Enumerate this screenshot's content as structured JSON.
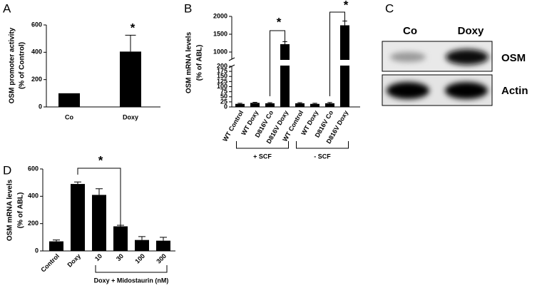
{
  "chart_data": [
    {
      "type": "bar",
      "panel": "A",
      "ylabel": [
        "OSM promoter activity",
        "(% of Control)"
      ],
      "categories": [
        "Co",
        "Doxy"
      ],
      "values": [
        100,
        405
      ],
      "errors": [
        null,
        120
      ],
      "color": "#000000",
      "ylim": [
        0,
        600
      ],
      "yticks": [
        0,
        200,
        400,
        600
      ],
      "annotations": [
        "*"
      ]
    },
    {
      "type": "bar",
      "panel": "B",
      "ylabel": [
        "OSM mRNA levels",
        "(% of ABL)"
      ],
      "categories": [
        "WT Control",
        "WT Doxy",
        "D816V Co",
        "D816V Doxy",
        "WT Control",
        "WT Doxy",
        "D816V Co",
        "D816V Doxy"
      ],
      "values": [
        15,
        20,
        18,
        1220,
        18,
        15,
        18,
        1750
      ],
      "errors": [
        3,
        3,
        3,
        70,
        3,
        3,
        4,
        120
      ],
      "color": "#000000",
      "ylim": [
        0,
        2000
      ],
      "ybreak": [
        200,
        800
      ],
      "yticks": [
        0,
        25,
        50,
        75,
        100,
        125,
        150,
        175,
        200,
        1000,
        1500,
        2000
      ],
      "groups": [
        "+ SCF",
        "- SCF"
      ],
      "annotations": [
        "*",
        "*"
      ]
    },
    {
      "type": "blot",
      "panel": "C",
      "columns": [
        "Co",
        "Doxy"
      ],
      "rows": [
        "OSM",
        "Actin"
      ]
    },
    {
      "type": "bar",
      "panel": "D",
      "ylabel": [
        "OSM mRNA levels",
        "(% of ABL)"
      ],
      "categories": [
        "Control",
        "Doxy",
        "10",
        "30",
        "100",
        "300"
      ],
      "values": [
        70,
        490,
        410,
        180,
        80,
        75
      ],
      "errors": [
        10,
        15,
        45,
        8,
        25,
        25
      ],
      "color": "#000000",
      "ylim": [
        0,
        600
      ],
      "yticks": [
        0,
        200,
        400,
        600
      ],
      "groups": [
        "Doxy + Midostaurin (nM)"
      ],
      "annotations": [
        "*"
      ]
    }
  ]
}
